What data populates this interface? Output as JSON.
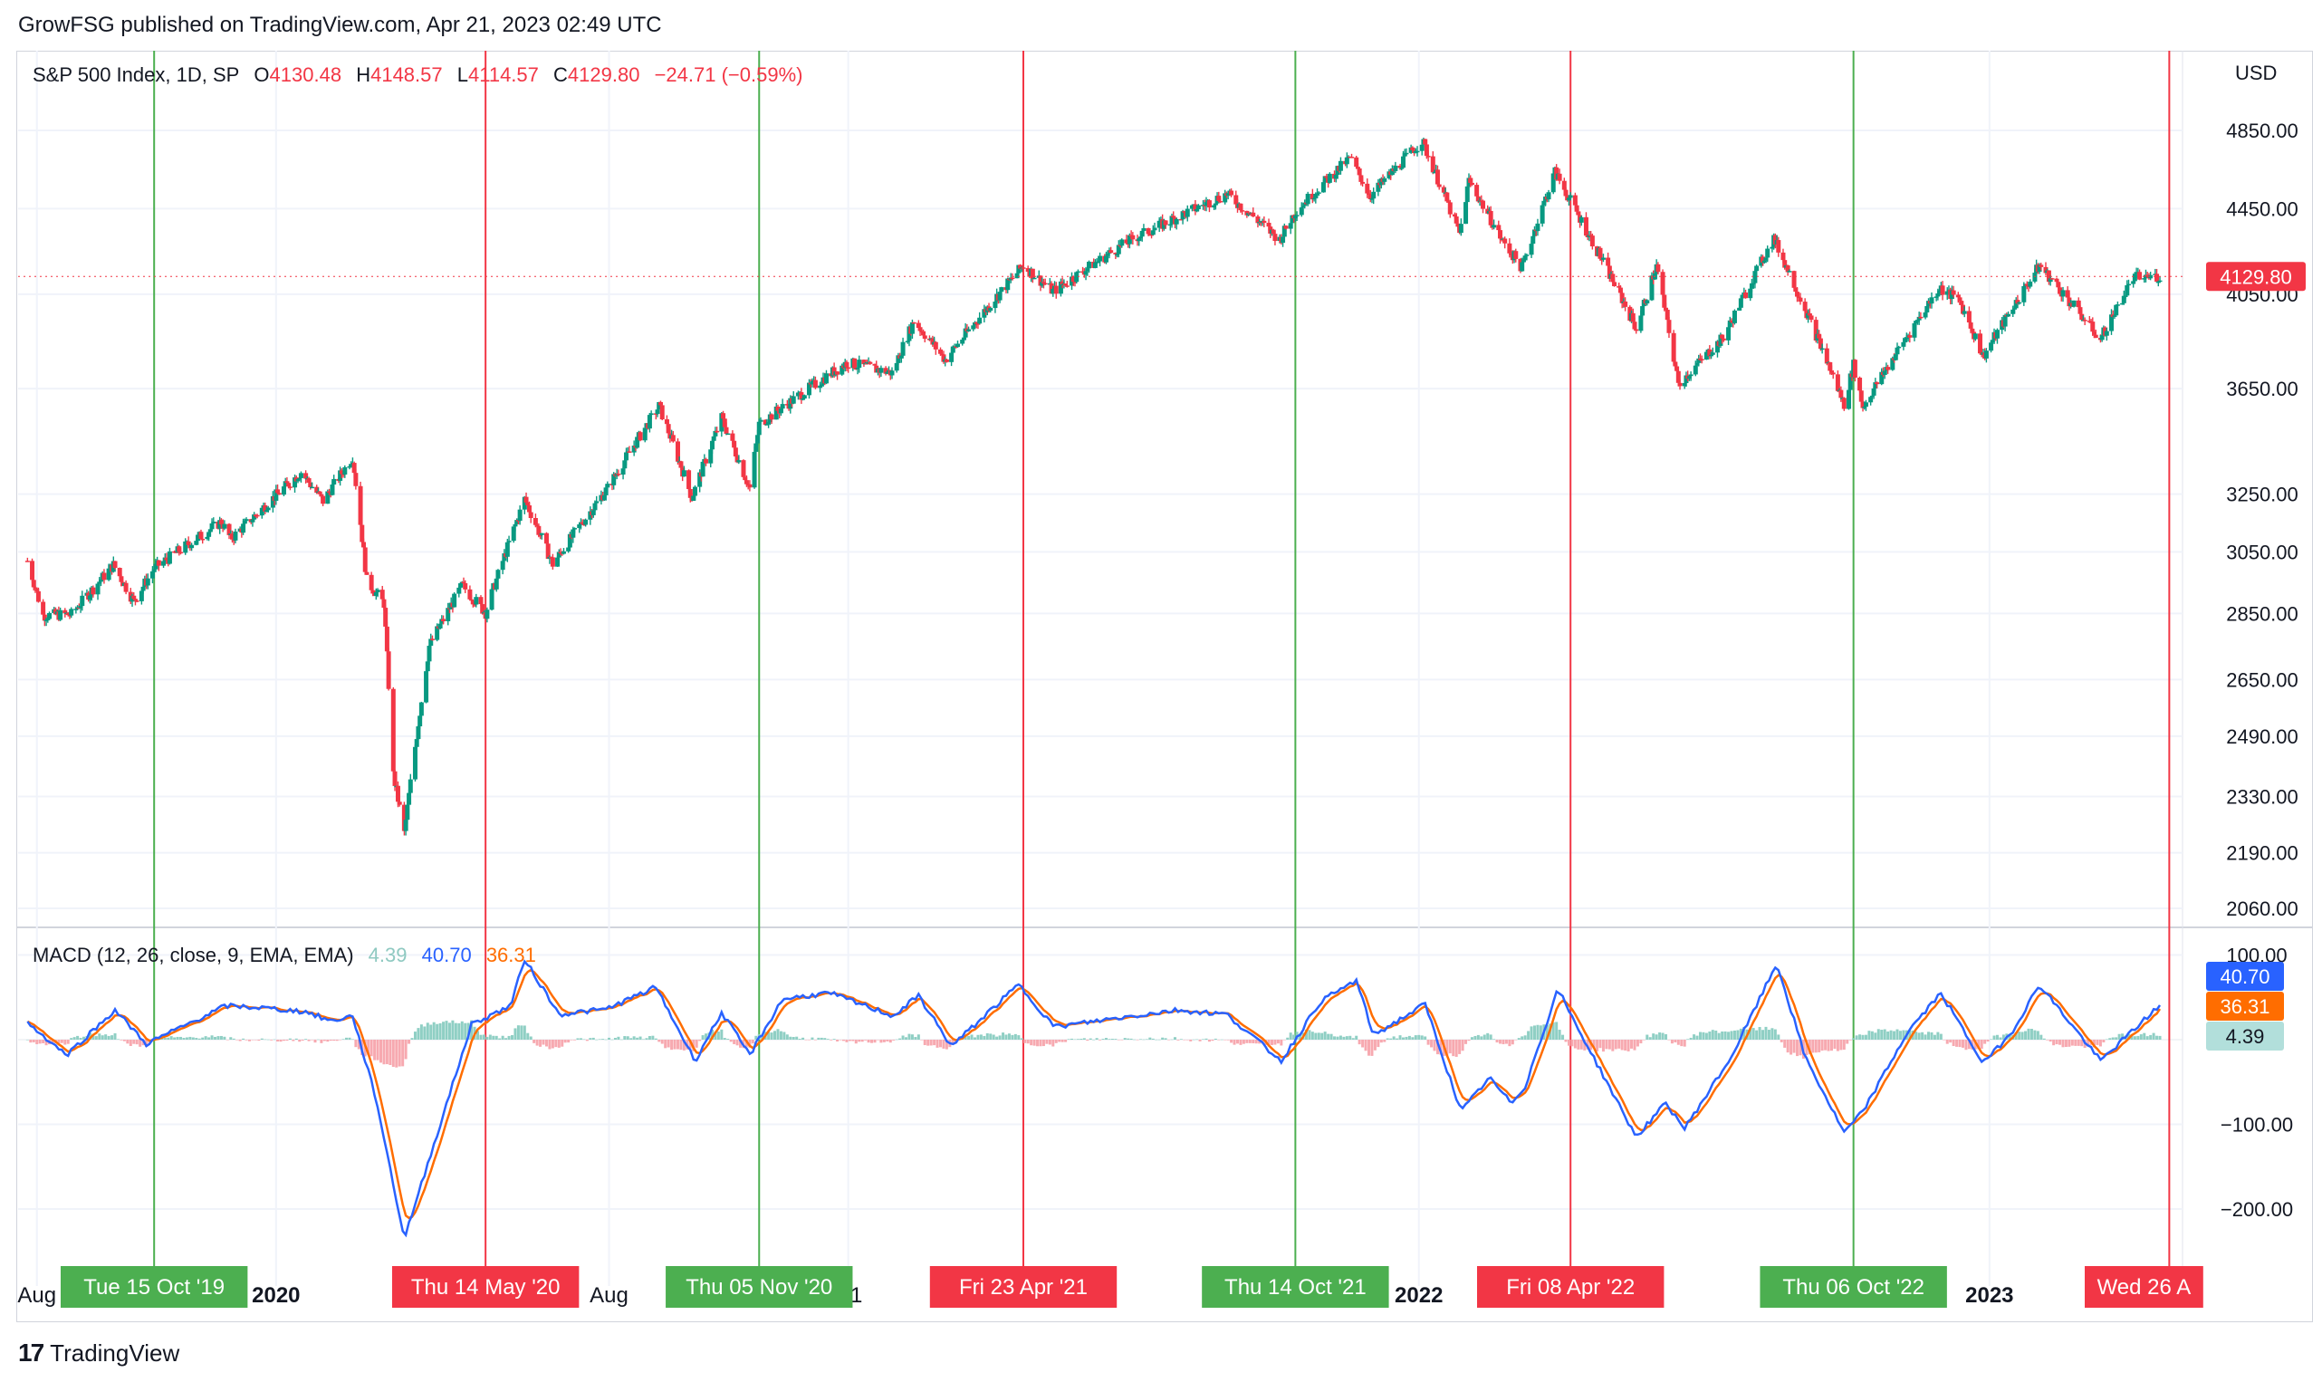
{
  "header": {
    "publisher_line": "GrowFSG published on TradingView.com, Apr 21, 2023 02:49 UTC"
  },
  "legend": {
    "symbol": "S&P 500 Index, 1D, SP",
    "o_label": "O",
    "o_value": "4130.48",
    "h_label": "H",
    "h_value": "4148.57",
    "l_label": "L",
    "l_value": "4114.57",
    "c_label": "C",
    "c_value": "4129.80",
    "change": "−24.71 (−0.59%)"
  },
  "macd_legend": {
    "name": "MACD (12, 26, close, 9, EMA, EMA)",
    "histogram": "4.39",
    "macd": "40.70",
    "signal": "36.31"
  },
  "footer": {
    "brand": "TradingView",
    "logo_text": "17"
  },
  "colors": {
    "up": "#089981",
    "down": "#f23645",
    "macd_line": "#2962ff",
    "signal_line": "#ff6d00",
    "hist_pos": "#8fcfc4",
    "hist_neg": "#f7a9b0",
    "buy_line": "#4caf50",
    "sell_line": "#f23645",
    "grid": "#f0f3fa"
  },
  "chart_data": [
    {
      "type": "candlestick",
      "title": "S&P 500 Index, 1D, SP",
      "currency": "USD",
      "y_ticks": [
        4850,
        4450,
        4050,
        3650,
        3250,
        3050,
        2850,
        2650,
        2490,
        2330,
        2190,
        2060
      ],
      "y_tick_labels": [
        "4850.00",
        "4450.00",
        "4050.00",
        "3650.00",
        "3250.00",
        "3050.00",
        "2850.00",
        "2650.00",
        "2490.00",
        "2330.00",
        "2190.00",
        "2060.00"
      ],
      "x_axis_labels": [
        "Aug",
        "2020",
        "Aug",
        "'21",
        "2022",
        "2023"
      ],
      "x_axis_label_dates": [
        "2019-08-01",
        "2020-01-01",
        "2020-08-01",
        "2021-01-01",
        "2022-01-01",
        "2023-01-01"
      ],
      "last_price": 4129.8,
      "last_price_label": "4129.80",
      "close_path": [
        {
          "date": "2019-07-26",
          "close": 3020
        },
        {
          "date": "2019-08-05",
          "close": 2844
        },
        {
          "date": "2019-08-23",
          "close": 2847
        },
        {
          "date": "2019-09-19",
          "close": 3006
        },
        {
          "date": "2019-10-02",
          "close": 2888
        },
        {
          "date": "2019-10-15",
          "close": 2995
        },
        {
          "date": "2019-11-27",
          "close": 3153
        },
        {
          "date": "2019-12-03",
          "close": 3093
        },
        {
          "date": "2020-01-17",
          "close": 3330
        },
        {
          "date": "2020-01-31",
          "close": 3225
        },
        {
          "date": "2020-02-19",
          "close": 3386
        },
        {
          "date": "2020-02-28",
          "close": 2954
        },
        {
          "date": "2020-03-10",
          "close": 2882
        },
        {
          "date": "2020-03-16",
          "close": 2386
        },
        {
          "date": "2020-03-23",
          "close": 2237
        },
        {
          "date": "2020-04-08",
          "close": 2750
        },
        {
          "date": "2020-04-29",
          "close": 2939
        },
        {
          "date": "2020-05-14",
          "close": 2852
        },
        {
          "date": "2020-06-08",
          "close": 3232
        },
        {
          "date": "2020-06-26",
          "close": 3009
        },
        {
          "date": "2020-07-31",
          "close": 3271
        },
        {
          "date": "2020-09-02",
          "close": 3580
        },
        {
          "date": "2020-09-23",
          "close": 3237
        },
        {
          "date": "2020-10-12",
          "close": 3534
        },
        {
          "date": "2020-10-30",
          "close": 3270
        },
        {
          "date": "2020-11-05",
          "close": 3510
        },
        {
          "date": "2020-12-31",
          "close": 3756
        },
        {
          "date": "2021-01-29",
          "close": 3714
        },
        {
          "date": "2021-02-12",
          "close": 3934
        },
        {
          "date": "2021-03-04",
          "close": 3768
        },
        {
          "date": "2021-04-23",
          "close": 4180
        },
        {
          "date": "2021-05-12",
          "close": 4063
        },
        {
          "date": "2021-06-30",
          "close": 4297
        },
        {
          "date": "2021-08-31",
          "close": 4523
        },
        {
          "date": "2021-10-04",
          "close": 4300
        },
        {
          "date": "2021-10-14",
          "close": 4438
        },
        {
          "date": "2021-11-18",
          "close": 4705
        },
        {
          "date": "2021-12-01",
          "close": 4513
        },
        {
          "date": "2022-01-03",
          "close": 4796
        },
        {
          "date": "2022-01-27",
          "close": 4326
        },
        {
          "date": "2022-02-02",
          "close": 4589
        },
        {
          "date": "2022-02-24",
          "close": 4288
        },
        {
          "date": "2022-03-08",
          "close": 4170
        },
        {
          "date": "2022-03-29",
          "close": 4631
        },
        {
          "date": "2022-04-08",
          "close": 4488
        },
        {
          "date": "2022-05-20",
          "close": 3901
        },
        {
          "date": "2022-06-02",
          "close": 4176
        },
        {
          "date": "2022-06-16",
          "close": 3667
        },
        {
          "date": "2022-07-15",
          "close": 3863
        },
        {
          "date": "2022-08-16",
          "close": 4305
        },
        {
          "date": "2022-09-30",
          "close": 3586
        },
        {
          "date": "2022-10-06",
          "close": 3745
        },
        {
          "date": "2022-10-12",
          "close": 3577
        },
        {
          "date": "2022-11-30",
          "close": 4080
        },
        {
          "date": "2022-12-13",
          "close": 4019
        },
        {
          "date": "2022-12-28",
          "close": 3783
        },
        {
          "date": "2023-02-02",
          "close": 4179
        },
        {
          "date": "2023-03-13",
          "close": 3855
        },
        {
          "date": "2023-04-03",
          "close": 4124
        },
        {
          "date": "2023-04-20",
          "close": 4129.8
        }
      ]
    },
    {
      "type": "line",
      "title": "MACD (12, 26, close, 9, EMA, EMA)",
      "y_ticks": [
        100,
        -100,
        -200
      ],
      "y_tick_labels": [
        "100.00",
        "−100.00",
        "−200.00"
      ],
      "series": [
        {
          "name": "MACD",
          "last_value": 40.7,
          "points": [
            {
              "date": "2019-07-26",
              "value": 20
            },
            {
              "date": "2019-08-20",
              "value": -18
            },
            {
              "date": "2019-09-20",
              "value": 35
            },
            {
              "date": "2019-10-10",
              "value": -5
            },
            {
              "date": "2019-11-30",
              "value": 40
            },
            {
              "date": "2019-12-20",
              "value": 38
            },
            {
              "date": "2020-01-20",
              "value": 33
            },
            {
              "date": "2020-02-05",
              "value": 22
            },
            {
              "date": "2020-02-19",
              "value": 28
            },
            {
              "date": "2020-03-05",
              "value": -70
            },
            {
              "date": "2020-03-23",
              "value": -235
            },
            {
              "date": "2020-04-15",
              "value": -100
            },
            {
              "date": "2020-05-05",
              "value": 18
            },
            {
              "date": "2020-05-30",
              "value": 40
            },
            {
              "date": "2020-06-08",
              "value": 95
            },
            {
              "date": "2020-06-30",
              "value": 30
            },
            {
              "date": "2020-07-30",
              "value": 36
            },
            {
              "date": "2020-08-31",
              "value": 62
            },
            {
              "date": "2020-09-25",
              "value": -25
            },
            {
              "date": "2020-10-12",
              "value": 32
            },
            {
              "date": "2020-10-30",
              "value": -18
            },
            {
              "date": "2020-11-20",
              "value": 48
            },
            {
              "date": "2020-12-20",
              "value": 55
            },
            {
              "date": "2021-01-30",
              "value": 28
            },
            {
              "date": "2021-02-15",
              "value": 52
            },
            {
              "date": "2021-03-08",
              "value": -8
            },
            {
              "date": "2021-04-20",
              "value": 65
            },
            {
              "date": "2021-05-13",
              "value": 15
            },
            {
              "date": "2021-06-20",
              "value": 25
            },
            {
              "date": "2021-07-30",
              "value": 35
            },
            {
              "date": "2021-08-31",
              "value": 30
            },
            {
              "date": "2021-10-05",
              "value": -25
            },
            {
              "date": "2021-10-30",
              "value": 45
            },
            {
              "date": "2021-11-22",
              "value": 70
            },
            {
              "date": "2021-12-03",
              "value": 5
            },
            {
              "date": "2022-01-05",
              "value": 42
            },
            {
              "date": "2022-01-28",
              "value": -85
            },
            {
              "date": "2022-02-15",
              "value": -45
            },
            {
              "date": "2022-03-01",
              "value": -75
            },
            {
              "date": "2022-03-10",
              "value": -55
            },
            {
              "date": "2022-03-31",
              "value": 60
            },
            {
              "date": "2022-04-08",
              "value": 30
            },
            {
              "date": "2022-05-20",
              "value": -115
            },
            {
              "date": "2022-06-08",
              "value": -75
            },
            {
              "date": "2022-06-20",
              "value": -105
            },
            {
              "date": "2022-07-20",
              "value": -20
            },
            {
              "date": "2022-08-18",
              "value": 90
            },
            {
              "date": "2022-09-05",
              "value": -20
            },
            {
              "date": "2022-09-30",
              "value": -110
            },
            {
              "date": "2022-10-12",
              "value": -85
            },
            {
              "date": "2022-11-10",
              "value": 10
            },
            {
              "date": "2022-12-01",
              "value": 55
            },
            {
              "date": "2022-12-28",
              "value": -28
            },
            {
              "date": "2023-01-15",
              "value": 8
            },
            {
              "date": "2023-02-02",
              "value": 65
            },
            {
              "date": "2023-03-13",
              "value": -25
            },
            {
              "date": "2023-04-20",
              "value": 40.7
            }
          ]
        },
        {
          "name": "Signal",
          "last_value": 36.31
        },
        {
          "name": "Histogram",
          "last_value": 4.39
        }
      ]
    }
  ],
  "signals": [
    {
      "label": "Tue 15 Oct '19",
      "date": "2019-10-15",
      "kind": "buy"
    },
    {
      "label": "Thu 14 May '20",
      "date": "2020-05-14",
      "kind": "sell"
    },
    {
      "label": "Thu 05 Nov '20",
      "date": "2020-11-05",
      "kind": "buy"
    },
    {
      "label": "Fri 23 Apr '21",
      "date": "2021-04-23",
      "kind": "sell"
    },
    {
      "label": "Thu 14 Oct '21",
      "date": "2021-10-14",
      "kind": "buy"
    },
    {
      "label": "Fri 08 Apr '22",
      "date": "2022-04-08",
      "kind": "sell"
    },
    {
      "label": "Thu 06 Oct '22",
      "date": "2022-10-06",
      "kind": "buy"
    },
    {
      "label": "Wed 26 A",
      "date": "2023-04-26",
      "kind": "sell"
    }
  ],
  "price_scale_currency": "USD"
}
